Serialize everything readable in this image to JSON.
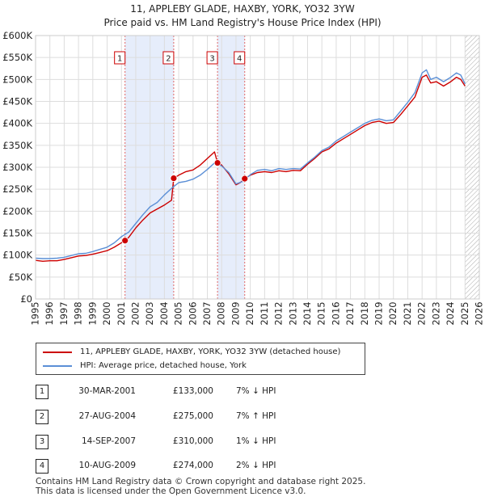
{
  "chart_data": {
    "type": "line",
    "title": "11, APPLEBY GLADE, HAXBY, YORK, YO32 3YW",
    "subtitle": "Price paid vs. HM Land Registry's House Price Index (HPI)",
    "xlabel": "",
    "ylabel": "",
    "xlim": [
      1995,
      2026
    ],
    "ylim": [
      0,
      600000
    ],
    "y_ticks": [
      0,
      50000,
      100000,
      150000,
      200000,
      250000,
      300000,
      350000,
      400000,
      450000,
      500000,
      550000,
      600000
    ],
    "y_tick_labels": [
      "£0",
      "£50K",
      "£100K",
      "£150K",
      "£200K",
      "£250K",
      "£300K",
      "£350K",
      "£400K",
      "£450K",
      "£500K",
      "£550K",
      "£600K"
    ],
    "x_ticks": [
      1995,
      1996,
      1997,
      1998,
      1999,
      2000,
      2001,
      2002,
      2003,
      2004,
      2005,
      2006,
      2007,
      2008,
      2009,
      2010,
      2011,
      2012,
      2013,
      2014,
      2015,
      2016,
      2017,
      2018,
      2019,
      2020,
      2021,
      2022,
      2023,
      2024,
      2025,
      2026
    ],
    "grid": true,
    "hatched_future_from": 2025.0,
    "series": [
      {
        "name": "11, APPLEBY GLADE, HAXBY, YORK, YO32 3YW (detached house)",
        "color": "#cc0000",
        "x": [
          1995.0,
          1995.5,
          1996.0,
          1996.5,
          1997.0,
          1997.5,
          1998.0,
          1998.5,
          1999.0,
          1999.5,
          2000.0,
          2000.5,
          2001.25,
          2001.5,
          2002.0,
          2002.5,
          2003.0,
          2003.5,
          2004.0,
          2004.5,
          2004.65,
          2005.0,
          2005.5,
          2006.0,
          2006.5,
          2007.0,
          2007.5,
          2007.71,
          2008.0,
          2008.5,
          2009.0,
          2009.3,
          2009.61,
          2010.0,
          2010.5,
          2011.0,
          2011.5,
          2012.0,
          2012.5,
          2013.0,
          2013.5,
          2014.0,
          2014.5,
          2015.0,
          2015.5,
          2016.0,
          2016.5,
          2017.0,
          2017.5,
          2018.0,
          2018.5,
          2019.0,
          2019.5,
          2020.0,
          2020.5,
          2021.0,
          2021.5,
          2022.0,
          2022.3,
          2022.6,
          2023.0,
          2023.5,
          2024.0,
          2024.4,
          2024.7,
          2025.0
        ],
        "y": [
          88000,
          86000,
          87000,
          87000,
          90000,
          94000,
          98000,
          99000,
          102000,
          106000,
          110000,
          118000,
          133000,
          140000,
          162000,
          180000,
          196000,
          205000,
          214000,
          225000,
          275000,
          282000,
          290000,
          294000,
          305000,
          320000,
          335000,
          310000,
          305000,
          285000,
          260000,
          265000,
          274000,
          282000,
          288000,
          290000,
          288000,
          292000,
          290000,
          293000,
          292000,
          307000,
          320000,
          335000,
          342000,
          355000,
          365000,
          375000,
          385000,
          395000,
          402000,
          405000,
          400000,
          402000,
          420000,
          440000,
          460000,
          505000,
          510000,
          492000,
          495000,
          485000,
          495000,
          505000,
          500000,
          485000
        ]
      },
      {
        "name": "HPI: Average price, detached house, York",
        "color": "#5b8fd6",
        "x": [
          1995.0,
          1995.5,
          1996.0,
          1996.5,
          1997.0,
          1997.5,
          1998.0,
          1998.5,
          1999.0,
          1999.5,
          2000.0,
          2000.5,
          2001.0,
          2001.5,
          2002.0,
          2002.5,
          2003.0,
          2003.5,
          2004.0,
          2004.5,
          2005.0,
          2005.5,
          2006.0,
          2006.5,
          2007.0,
          2007.5,
          2008.0,
          2008.5,
          2009.0,
          2009.5,
          2010.0,
          2010.5,
          2011.0,
          2011.5,
          2012.0,
          2012.5,
          2013.0,
          2013.5,
          2014.0,
          2014.5,
          2015.0,
          2015.5,
          2016.0,
          2016.5,
          2017.0,
          2017.5,
          2018.0,
          2018.5,
          2019.0,
          2019.5,
          2020.0,
          2020.5,
          2021.0,
          2021.5,
          2022.0,
          2022.3,
          2022.6,
          2023.0,
          2023.5,
          2024.0,
          2024.4,
          2024.7,
          2025.0
        ],
        "y": [
          93000,
          92000,
          92000,
          93000,
          95000,
          99000,
          103000,
          104000,
          108000,
          113000,
          118000,
          128000,
          142000,
          152000,
          172000,
          192000,
          210000,
          220000,
          237000,
          252000,
          265000,
          268000,
          273000,
          282000,
          295000,
          310000,
          303000,
          288000,
          262000,
          268000,
          283000,
          293000,
          295000,
          292000,
          297000,
          295000,
          297000,
          296000,
          310000,
          323000,
          338000,
          346000,
          360000,
          370000,
          380000,
          390000,
          400000,
          407000,
          410000,
          406000,
          408000,
          428000,
          448000,
          470000,
          515000,
          522000,
          500000,
          505000,
          495000,
          505000,
          515000,
          510000,
          490000
        ]
      }
    ],
    "sale_markers": [
      {
        "label": "1",
        "x": 2001.25,
        "y": 133000
      },
      {
        "label": "2",
        "x": 2004.65,
        "y": 275000
      },
      {
        "label": "3",
        "x": 2007.71,
        "y": 310000
      },
      {
        "label": "4",
        "x": 2009.61,
        "y": 274000
      }
    ],
    "shaded_spans": [
      [
        2001.25,
        2004.65
      ],
      [
        2007.71,
        2009.61
      ]
    ]
  },
  "legend": {
    "property_label": "11, APPLEBY GLADE, HAXBY, YORK, YO32 3YW (detached house)",
    "hpi_label": "HPI: Average price, detached house, York",
    "property_color": "#cc0000",
    "hpi_color": "#5b8fd6"
  },
  "sales": [
    {
      "num": "1",
      "date": "30-MAR-2001",
      "price": "£133,000",
      "hpi": "7% ↓ HPI"
    },
    {
      "num": "2",
      "date": "27-AUG-2004",
      "price": "£275,000",
      "hpi": "7% ↑ HPI"
    },
    {
      "num": "3",
      "date": "14-SEP-2007",
      "price": "£310,000",
      "hpi": "1% ↓ HPI"
    },
    {
      "num": "4",
      "date": "10-AUG-2009",
      "price": "£274,000",
      "hpi": "2% ↓ HPI"
    }
  ],
  "footer": {
    "line1": "Contains HM Land Registry data © Crown copyright and database right 2025.",
    "line2": "This data is licensed under the Open Government Licence v3.0."
  }
}
